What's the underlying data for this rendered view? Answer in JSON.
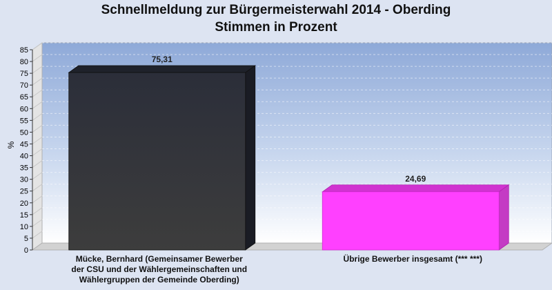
{
  "title_line1": "Schnellmeldung zur Bürgermeisterwahl 2014 - Oberding",
  "title_line2": "Stimmen in Prozent",
  "chart_data": {
    "type": "bar",
    "title": "Schnellmeldung zur Bürgermeisterwahl 2014 - Oberding",
    "subtitle": "Stimmen in Prozent",
    "ylabel": "%",
    "ylim": [
      0,
      85
    ],
    "yticks": [
      0,
      5,
      10,
      15,
      20,
      25,
      30,
      35,
      40,
      45,
      50,
      55,
      60,
      65,
      70,
      75,
      80,
      85
    ],
    "categories": [
      "Mücke, Bernhard (Gemeinsamer Bewerber der CSU und der Wählergemeinschaften und Wählergruppen der Gemeinde Oberding)",
      "Übrige Bewerber insgesamt (*** ***)"
    ],
    "category_lines": [
      [
        "Mücke, Bernhard (Gemeinsamer Bewerber",
        "der CSU und der Wählergemeinschaften und",
        "Wählergruppen der Gemeinde Oberding)"
      ],
      [
        "Übrige Bewerber insgesamt (***  ***)"
      ]
    ],
    "values": [
      75.31,
      24.69
    ],
    "value_labels": [
      "75,31",
      "24,69"
    ],
    "colors": [
      "#2c2f3a",
      "#ff40ff"
    ],
    "grid": true,
    "legend": "none"
  }
}
